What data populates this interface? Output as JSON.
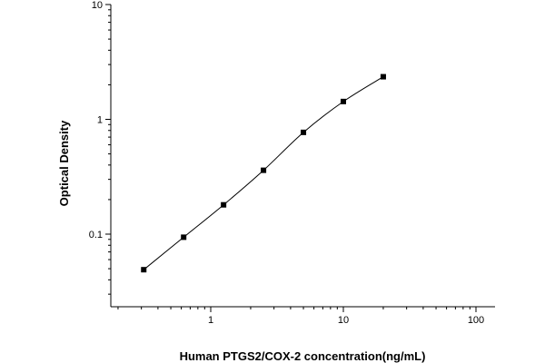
{
  "chart_data": {
    "type": "line",
    "title": "",
    "xlabel": "Human PTGS2/COX-2 concentration(ng/mL)",
    "ylabel": "Optical Density",
    "x_scale": "log",
    "y_scale": "log",
    "xlim": [
      0.2,
      100
    ],
    "ylim": [
      0.03,
      10
    ],
    "x_ticks": [
      {
        "value": 1,
        "label": "1"
      },
      {
        "value": 10,
        "label": "10"
      },
      {
        "value": 100,
        "label": "100"
      }
    ],
    "y_ticks": [
      {
        "value": 0.1,
        "label": "0.1"
      },
      {
        "value": 1,
        "label": "1"
      },
      {
        "value": 10,
        "label": "10"
      }
    ],
    "grid": false,
    "legend": "none",
    "series": [
      {
        "marker": "square",
        "color": "#000000",
        "points": [
          {
            "x": 0.3125,
            "y": 0.049
          },
          {
            "x": 0.625,
            "y": 0.094
          },
          {
            "x": 1.25,
            "y": 0.18
          },
          {
            "x": 2.5,
            "y": 0.36
          },
          {
            "x": 5,
            "y": 0.77
          },
          {
            "x": 10,
            "y": 1.43
          },
          {
            "x": 20,
            "y": 2.35
          }
        ]
      }
    ]
  }
}
